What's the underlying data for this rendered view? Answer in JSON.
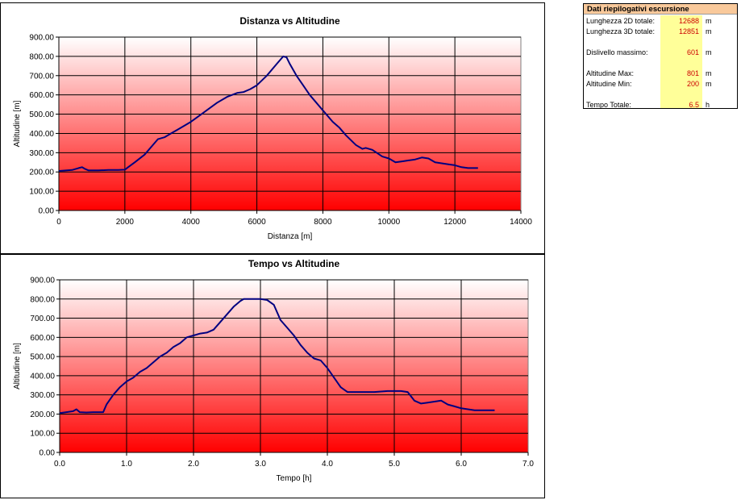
{
  "charts": [
    {
      "title": "Distanza vs Altitudine",
      "xlabel": "Distanza [m]",
      "ylabel": "Altitudine [m]",
      "x_ticks": [
        "0",
        "2000",
        "4000",
        "6000",
        "8000",
        "10000",
        "12000",
        "14000"
      ],
      "y_ticks": [
        "0.00",
        "100.00",
        "200.00",
        "300.00",
        "400.00",
        "500.00",
        "600.00",
        "700.00",
        "800.00",
        "900.00"
      ]
    },
    {
      "title": "Tempo vs Altitudine",
      "xlabel": "Tempo [h]",
      "ylabel": "Altitudine [m]",
      "x_ticks": [
        "0.0",
        "1.0",
        "2.0",
        "3.0",
        "4.0",
        "5.0",
        "6.0",
        "7.0"
      ],
      "y_ticks": [
        "0.00",
        "100.00",
        "200.00",
        "300.00",
        "400.00",
        "500.00",
        "600.00",
        "700.00",
        "800.00",
        "900.00"
      ]
    }
  ],
  "chart_data": [
    {
      "type": "line",
      "title": "Distanza vs Altitudine",
      "xlabel": "Distanza [m]",
      "ylabel": "Altitudine [m]",
      "xlim": [
        0,
        14000
      ],
      "ylim": [
        0,
        900
      ],
      "grid": true,
      "line_color": "#000080",
      "gradient": [
        "#ffffff",
        "#ff0000"
      ],
      "x": [
        0,
        400,
        600,
        700,
        800,
        900,
        1200,
        1500,
        1800,
        2000,
        2100,
        2300,
        2600,
        2900,
        3000,
        3200,
        3400,
        3600,
        4000,
        4400,
        4800,
        5100,
        5400,
        5600,
        5800,
        6000,
        6300,
        6600,
        6800,
        6900,
        7000,
        7200,
        7400,
        7600,
        7800,
        8000,
        8300,
        8500,
        8700,
        9000,
        9200,
        9300,
        9500,
        9800,
        10000,
        10200,
        10400,
        10600,
        10800,
        11000,
        11200,
        11400,
        11600,
        11800,
        12000,
        12200,
        12400,
        12700
      ],
      "y": [
        205,
        210,
        220,
        225,
        215,
        208,
        208,
        210,
        210,
        212,
        225,
        250,
        290,
        350,
        370,
        380,
        400,
        420,
        460,
        510,
        560,
        590,
        610,
        615,
        630,
        650,
        700,
        760,
        800,
        795,
        760,
        700,
        650,
        600,
        560,
        520,
        460,
        430,
        390,
        340,
        320,
        325,
        315,
        280,
        270,
        250,
        255,
        260,
        265,
        275,
        270,
        250,
        245,
        240,
        235,
        225,
        220,
        220
      ]
    },
    {
      "type": "line",
      "title": "Tempo vs Altitudine",
      "xlabel": "Tempo [h]",
      "ylabel": "Altitudine [m]",
      "xlim": [
        0,
        7
      ],
      "ylim": [
        0,
        900
      ],
      "grid": true,
      "line_color": "#000080",
      "gradient": [
        "#ffffff",
        "#ff0000"
      ],
      "x": [
        0,
        0.1,
        0.2,
        0.25,
        0.3,
        0.4,
        0.5,
        0.65,
        0.7,
        0.8,
        0.9,
        1.0,
        1.1,
        1.2,
        1.3,
        1.4,
        1.5,
        1.6,
        1.7,
        1.8,
        1.9,
        2.0,
        2.1,
        2.2,
        2.3,
        2.4,
        2.5,
        2.6,
        2.7,
        2.75,
        2.8,
        3.0,
        3.1,
        3.2,
        3.3,
        3.4,
        3.5,
        3.6,
        3.7,
        3.8,
        3.9,
        4.0,
        4.1,
        4.2,
        4.3,
        4.5,
        4.7,
        4.9,
        5.0,
        5.1,
        5.2,
        5.3,
        5.4,
        5.5,
        5.6,
        5.7,
        5.8,
        5.9,
        6.0,
        6.1,
        6.2,
        6.3,
        6.5
      ],
      "y": [
        205,
        210,
        215,
        225,
        210,
        208,
        210,
        210,
        250,
        300,
        340,
        370,
        390,
        420,
        440,
        470,
        500,
        520,
        550,
        570,
        600,
        610,
        620,
        625,
        640,
        680,
        720,
        760,
        790,
        800,
        800,
        800,
        795,
        770,
        690,
        650,
        610,
        560,
        520,
        490,
        480,
        440,
        390,
        340,
        315,
        315,
        315,
        320,
        320,
        320,
        315,
        270,
        255,
        260,
        265,
        270,
        250,
        240,
        230,
        225,
        220,
        220,
        220
      ]
    }
  ],
  "summary": {
    "title": "Dati riepilogativi escursione",
    "rows": [
      {
        "label": "Lunghezza 2D totale:",
        "value": "12688",
        "unit": "m"
      },
      {
        "label": "Lunghezza 3D totale:",
        "value": "12851",
        "unit": "m"
      },
      {
        "label": "Dislivello massimo:",
        "value": "601",
        "unit": "m"
      },
      {
        "label": "Altitudine Max:",
        "value": "801",
        "unit": "m"
      },
      {
        "label": "Altitudine Min:",
        "value": "200",
        "unit": "m"
      },
      {
        "label": "Tempo Totale:",
        "value": "6.5",
        "unit": "h"
      }
    ]
  }
}
